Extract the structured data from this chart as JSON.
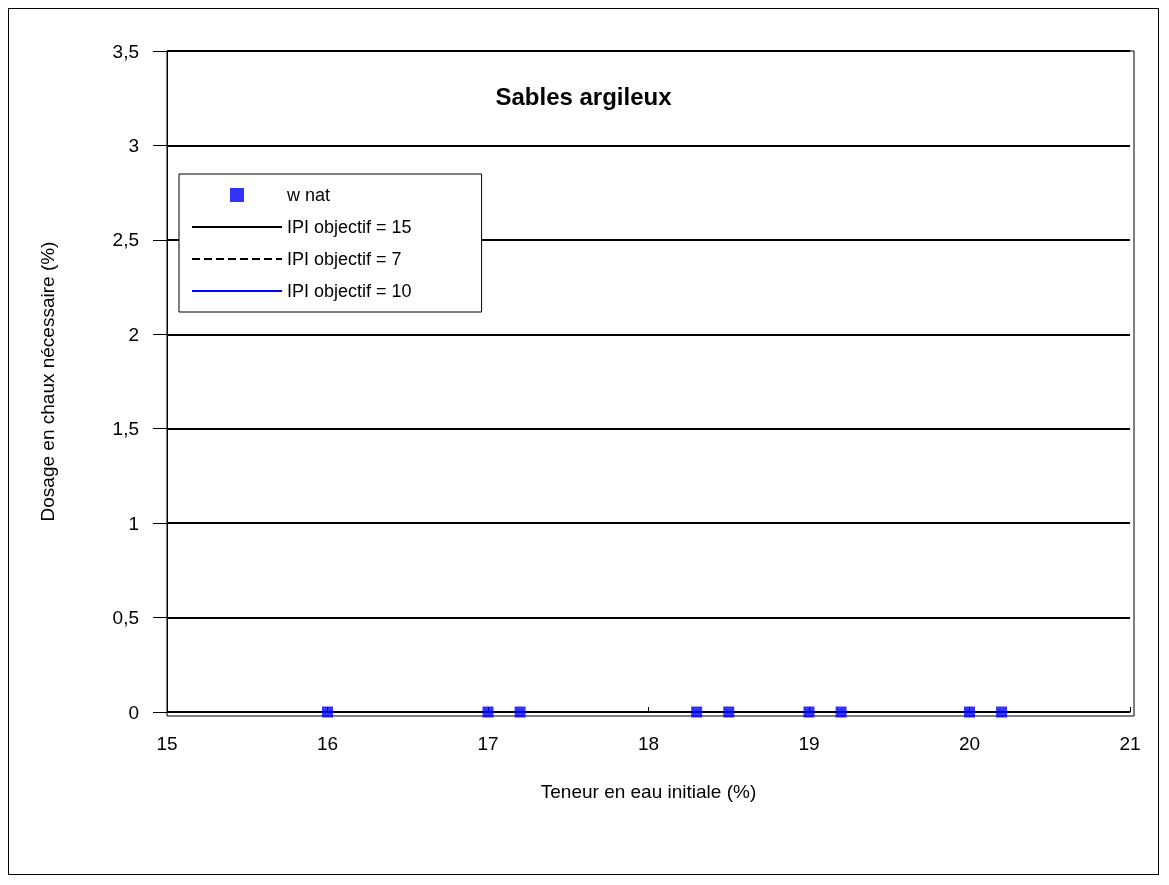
{
  "chart_data": {
    "type": "scatter",
    "title": "Sables argileux",
    "xlabel": "Teneur en eau initiale (%)",
    "ylabel": "Dosage en chaux nécessaire (%)",
    "x": [
      16,
      17,
      17.2,
      18.3,
      18.5,
      19,
      19.2,
      20,
      20.2
    ],
    "series": [
      {
        "name": "w nat",
        "color": "#0000ff",
        "marker": "square",
        "values": [
          0,
          0,
          0,
          0,
          0,
          0,
          0,
          0,
          0
        ]
      },
      {
        "name": "IPI objectif = 15",
        "type": "line",
        "color": "#000000",
        "line_style": "solid",
        "values": [
          null,
          null,
          null,
          null,
          null,
          null,
          null,
          null,
          null
        ]
      },
      {
        "name": "IPI objectif = 7",
        "type": "line",
        "color": "#000000",
        "line_style": "dashed",
        "values": [
          null,
          null,
          null,
          null,
          null,
          null,
          null,
          null,
          null
        ]
      },
      {
        "name": "IPI objectif = 10",
        "type": "line",
        "color": "#0000ff",
        "line_style": "solid",
        "values": [
          null,
          null,
          null,
          null,
          null,
          null,
          null,
          null,
          null
        ]
      }
    ],
    "xlim": [
      15,
      21
    ],
    "xticks": [
      15,
      16,
      17,
      18,
      19,
      20,
      21
    ],
    "ylim": [
      0,
      3.5
    ],
    "yticks": [
      0,
      {
        "value": 0.5,
        "label": "0,5"
      },
      1,
      {
        "value": 1.5,
        "label": "1,5"
      },
      2,
      {
        "value": 2.5,
        "label": "2,5"
      },
      3,
      {
        "value": 3.5,
        "label": "3,5"
      }
    ],
    "grid": "y",
    "legend": "top left"
  }
}
